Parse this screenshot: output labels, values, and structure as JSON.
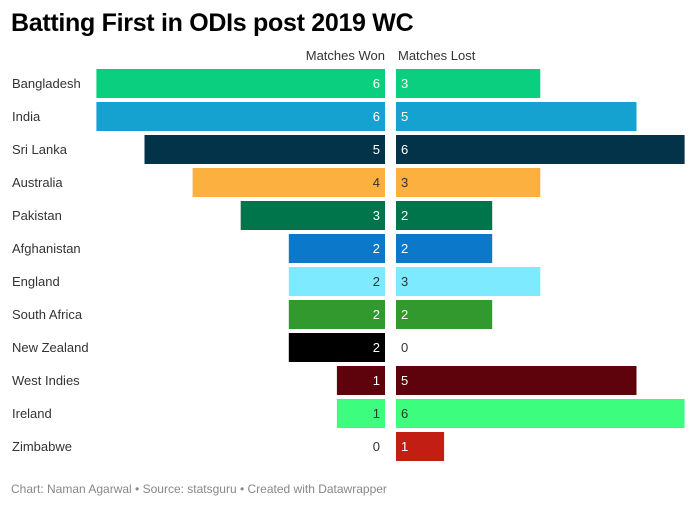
{
  "title": "Batting First in ODIs post 2019 WC",
  "footer": "Chart: Naman Agarwal • Source: statsguru • Created with Datawrapper",
  "chart_data": {
    "type": "bar",
    "title": "Batting First in ODIs post 2019 WC",
    "categories": [
      "Bangladesh",
      "India",
      "Sri Lanka",
      "Australia",
      "Pakistan",
      "Afghanistan",
      "England",
      "South Africa",
      "New Zealand",
      "West Indies",
      "Ireland",
      "Zimbabwe"
    ],
    "series": [
      {
        "name": "Matches Won",
        "values": [
          6,
          6,
          5,
          4,
          3,
          2,
          2,
          2,
          2,
          1,
          1,
          0
        ]
      },
      {
        "name": "Matches Lost",
        "values": [
          3,
          5,
          6,
          3,
          2,
          2,
          3,
          2,
          0,
          5,
          6,
          1
        ]
      }
    ],
    "colors": [
      "#0acf7e",
      "#16a2d1",
      "#033349",
      "#fcb040",
      "#00744a",
      "#0b78c9",
      "#7eeaff",
      "#32992f",
      "#000000",
      "#5e020c",
      "#3dfd7e",
      "#c31e14"
    ],
    "label_colors": [
      "#ffffff",
      "#ffffff",
      "#ffffff",
      "#333333",
      "#ffffff",
      "#ffffff",
      "#333333",
      "#ffffff",
      "#ffffff",
      "#ffffff",
      "#333333",
      "#ffffff"
    ],
    "xlim": [
      0,
      6
    ],
    "legend": "top"
  }
}
